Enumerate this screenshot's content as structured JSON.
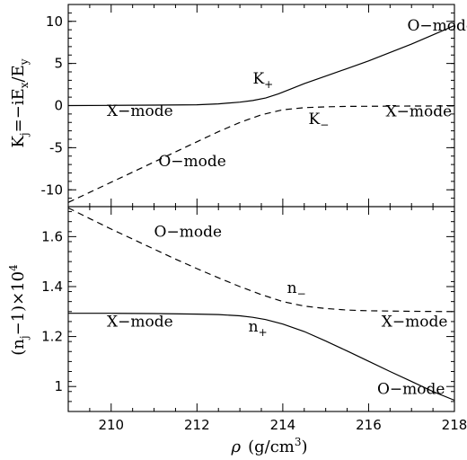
{
  "chart_data": [
    {
      "type": "line",
      "panel": "top",
      "ylabel_parts": {
        "main": "K",
        "sub": "j",
        "rest": "=−iE",
        "sub2": "x",
        "rest2": "/E",
        "sub3": "y"
      },
      "xlim": [
        209,
        218
      ],
      "ylim": [
        -12,
        12
      ],
      "yticks": [
        -10,
        -5,
        0,
        5,
        10
      ],
      "xticks": [
        210,
        212,
        214,
        216,
        218
      ],
      "grid": false,
      "series": [
        {
          "name": "K+",
          "style": "solid",
          "x": [
            209,
            210,
            211,
            212,
            212.5,
            213,
            213.3,
            213.6,
            213.9,
            214.2,
            214.5,
            215,
            215.5,
            216,
            216.5,
            217,
            217.5,
            218
          ],
          "y": [
            0,
            0.02,
            0.05,
            0.1,
            0.2,
            0.4,
            0.6,
            0.9,
            1.4,
            2.0,
            2.6,
            3.5,
            4.4,
            5.3,
            6.3,
            7.3,
            8.4,
            9.5
          ]
        },
        {
          "name": "K−",
          "style": "dashed",
          "x": [
            209,
            209.5,
            210,
            210.5,
            211,
            211.5,
            212,
            212.5,
            213,
            213.5,
            214,
            214.5,
            215,
            215.5,
            216,
            217,
            218
          ],
          "y": [
            -11.5,
            -10.3,
            -9.1,
            -7.9,
            -6.7,
            -5.5,
            -4.3,
            -3.1,
            -2.0,
            -1.1,
            -0.5,
            -0.25,
            -0.15,
            -0.1,
            -0.08,
            -0.05,
            -0.04
          ]
        }
      ],
      "annotations": [
        {
          "text": "O−mode",
          "x": 216.9,
          "y": 8.9
        },
        {
          "text": "X−mode",
          "x": 209.9,
          "y": -1.2
        },
        {
          "text": "X−mode",
          "x": 216.4,
          "y": -1.3
        },
        {
          "text": "O−mode",
          "x": 211.1,
          "y": -7.2
        },
        {
          "text": "K",
          "sub": "+",
          "x": 213.3,
          "y": 2.6
        },
        {
          "text": "K",
          "sub": "−",
          "x": 214.6,
          "y": -2.2
        }
      ]
    },
    {
      "type": "line",
      "panel": "bottom",
      "ylabel_parts": {
        "a": "(n",
        "sub": "j",
        "b": "−1)×10",
        "sup": "4"
      },
      "xlabel_parts": {
        "rho": "ρ",
        "rest": "(g/cm",
        "sup": "3",
        "close": ")"
      },
      "xlim": [
        209,
        218
      ],
      "ylim": [
        0.9,
        1.72
      ],
      "yticks": [
        1.0,
        1.2,
        1.4,
        1.6
      ],
      "ytick_labels": [
        "1",
        "1.2",
        "1.4",
        "1.6"
      ],
      "xticks": [
        210,
        212,
        214,
        216,
        218
      ],
      "grid": false,
      "series": [
        {
          "name": "n+",
          "style": "solid",
          "x": [
            209,
            210,
            211,
            212,
            212.5,
            213,
            213.3,
            213.6,
            214,
            214.5,
            215,
            215.5,
            216,
            216.5,
            217,
            217.5,
            218
          ],
          "y": [
            1.293,
            1.293,
            1.292,
            1.29,
            1.288,
            1.283,
            1.277,
            1.268,
            1.25,
            1.22,
            1.182,
            1.142,
            1.101,
            1.06,
            1.02,
            0.98,
            0.945
          ]
        },
        {
          "name": "n−",
          "style": "dashed",
          "x": [
            209,
            209.5,
            210,
            210.5,
            211,
            211.5,
            212,
            212.5,
            213,
            213.5,
            214,
            214.5,
            215,
            215.5,
            216,
            217,
            218
          ],
          "y": [
            1.715,
            1.672,
            1.63,
            1.59,
            1.55,
            1.51,
            1.472,
            1.435,
            1.4,
            1.368,
            1.34,
            1.322,
            1.312,
            1.306,
            1.303,
            1.301,
            1.3
          ]
        }
      ],
      "annotations": [
        {
          "text": "O−mode",
          "x": 211.0,
          "y": 1.6
        },
        {
          "text": "X−mode",
          "x": 209.9,
          "y": 1.24
        },
        {
          "text": "X−mode",
          "x": 216.3,
          "y": 1.24
        },
        {
          "text": "O−mode",
          "x": 216.2,
          "y": 0.97
        },
        {
          "text": "n",
          "sub": "−",
          "x": 214.1,
          "y": 1.375
        },
        {
          "text": "n",
          "sub": "+",
          "x": 213.2,
          "y": 1.22
        }
      ]
    }
  ]
}
